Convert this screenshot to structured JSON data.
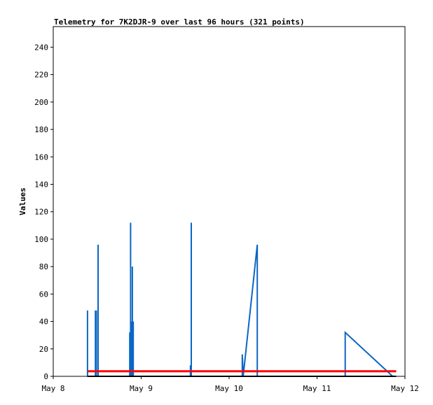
{
  "chart_data": {
    "type": "line",
    "title": "Telemetry for 7K2DJR-9 over last 96 hours (321 points)",
    "xlabel": "",
    "ylabel": "Values",
    "xlim": [
      "May 8",
      "May 12"
    ],
    "ylim": [
      0,
      255
    ],
    "x_ticks": [
      "May 8",
      "May 9",
      "May 10",
      "May 11",
      "May 12"
    ],
    "y_ticks": [
      0,
      20,
      40,
      60,
      80,
      100,
      120,
      140,
      160,
      180,
      200,
      220,
      240
    ],
    "grid": false,
    "colors": {
      "series_blue": "#0c66c4",
      "series_red": "#ff0000",
      "series_black": "#000000"
    },
    "series": [
      {
        "color": "#0c66c4",
        "x_days": [
          0.39,
          0.39,
          0.39,
          0.48,
          0.48,
          0.48,
          0.49,
          0.49,
          0.49,
          0.51,
          0.51,
          0.51,
          0.87,
          0.87,
          0.87,
          0.88,
          0.88,
          0.88,
          0.89,
          0.89,
          0.89,
          0.9,
          0.9,
          0.9,
          0.91,
          0.91,
          0.91,
          1.56,
          1.56,
          1.57,
          1.57,
          1.57,
          2.15,
          2.15,
          2.16,
          2.32,
          2.32,
          3.32,
          3.32,
          3.32,
          3.32,
          3.86
        ],
        "y": [
          0,
          48,
          0,
          0,
          48,
          0,
          0,
          48,
          0,
          0,
          96,
          0,
          0,
          32,
          0,
          0,
          112,
          0,
          0,
          40,
          0,
          0,
          80,
          0,
          0,
          40,
          0,
          0,
          8,
          0,
          112,
          0,
          0,
          16,
          0,
          96,
          0,
          0,
          8,
          0,
          32,
          0
        ]
      },
      {
        "color": "#ff0000",
        "x_days": [
          0.39,
          3.9
        ],
        "y": [
          3.7,
          3.7
        ]
      },
      {
        "color": "#000000",
        "x_days": [
          0.39,
          3.9
        ],
        "y": [
          0,
          0
        ]
      }
    ]
  }
}
